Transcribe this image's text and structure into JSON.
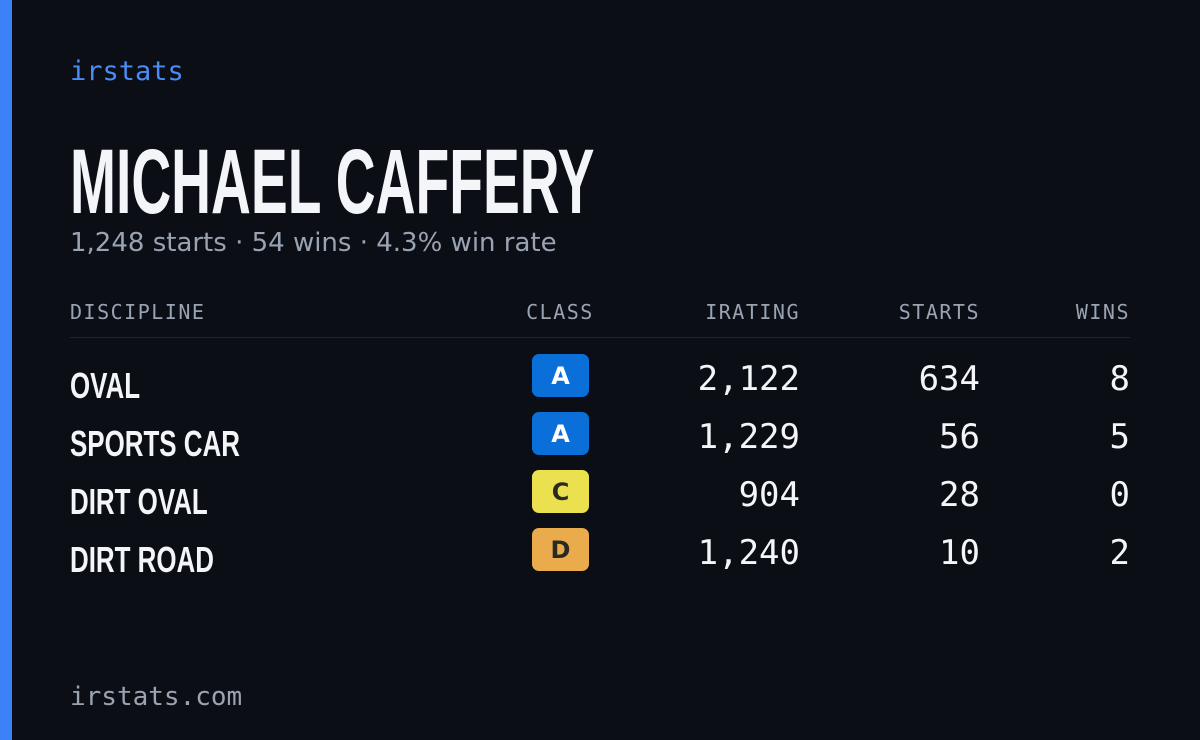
{
  "brand": "irstats",
  "header": {
    "title": "MICHAEL CAFFERY",
    "subtitle": "1,248 starts · 54 wins · 4.3% win rate"
  },
  "table": {
    "columns": [
      "DISCIPLINE",
      "CLASS",
      "IRATING",
      "STARTS",
      "WINS"
    ],
    "rows": [
      {
        "discipline": "OVAL",
        "class": "A",
        "class_color": "#0b6fd9",
        "irating": "2,122",
        "starts": "634",
        "wins": "8"
      },
      {
        "discipline": "SPORTS CAR",
        "class": "A",
        "class_color": "#0b6fd9",
        "irating": "1,229",
        "starts": "56",
        "wins": "5"
      },
      {
        "discipline": "DIRT OVAL",
        "class": "C",
        "class_color": "#ebe04d",
        "irating": "904",
        "starts": "28",
        "wins": "0"
      },
      {
        "discipline": "DIRT ROAD",
        "class": "D",
        "class_color": "#eaab4c",
        "irating": "1,240",
        "starts": "10",
        "wins": "2"
      }
    ]
  },
  "footer": "irstats.com"
}
